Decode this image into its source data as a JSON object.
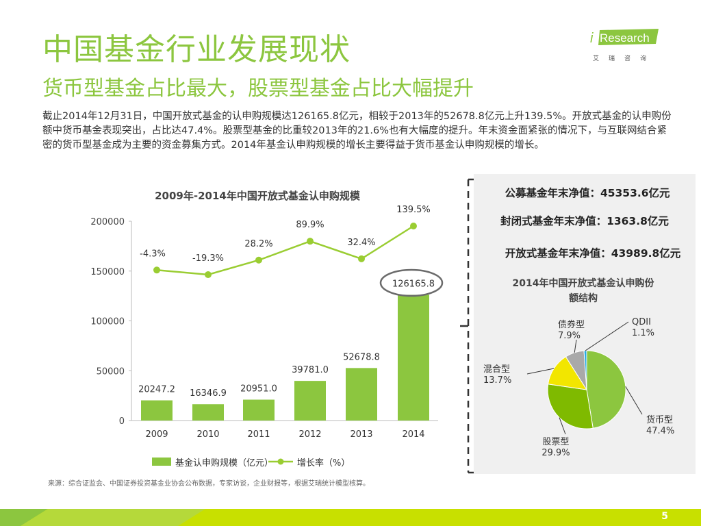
{
  "header": {
    "title": "中国基金行业发展现状",
    "subtitle": "货币型基金占比最大，股票型基金占比大幅提升"
  },
  "logo": {
    "brand_i": "i",
    "brand_text": "Research",
    "subtext": "艾瑞咨询"
  },
  "intro_text": "截止2014年12月31日，中国开放式基金的认申购规模达126165.8亿元，相较于2013年的52678.8亿元上升139.5%。开放式基金的认申购份额中货币基金表现突出，占比达47.4%。股票型基金的比重较2013年的21.6%也有大幅度的提升。年末资金面紧张的情况下，与互联网结合紧密的货币型基金成为主要的资金募集方式。2014年基金认申购规模的增长主要得益于货币基金认申购规模的增长。",
  "side_panel": {
    "lines": [
      "公募基金年末净值：45353.6亿元",
      "封闭式基金年末净值：1363.8亿元",
      "开放式基金年末净值：43989.8亿元"
    ]
  },
  "source": "来源：综合证监会、中国证券投资基金业协会公布数据，专家访谈，企业财报等，根据艾瑞统计模型核算。",
  "page_number": "5",
  "colors": {
    "accent": "#8cc63f",
    "accent_dark": "#9acd32",
    "circle": "#6b6b6b"
  },
  "chart_data": [
    {
      "type": "bar",
      "title": "2009年-2014年中国开放式基金认申购规模",
      "categories": [
        "2009",
        "2010",
        "2011",
        "2012",
        "2013",
        "2014"
      ],
      "series": [
        {
          "name": "基金认申购规模（亿元）",
          "values": [
            20247.2,
            16346.9,
            20951.0,
            39781.0,
            52678.8,
            126165.8
          ],
          "labels": [
            "20247.2",
            "16346.9",
            "20951.0",
            "39781.0",
            "52678.8",
            "126165.8"
          ]
        },
        {
          "name": "增长率（%）",
          "type": "line",
          "values": [
            -4.3,
            -19.3,
            28.2,
            89.9,
            32.4,
            139.5
          ],
          "labels": [
            "-4.3%",
            "-19.3%",
            "28.2%",
            "89.9%",
            "32.4%",
            "139.5%"
          ]
        }
      ],
      "ylim": [
        0,
        200000
      ],
      "yticks": [
        "0",
        "50000",
        "100000",
        "150000",
        "200000"
      ],
      "highlight": "126165.8"
    },
    {
      "type": "pie",
      "title": "2014年中国开放式基金认申购份额结构",
      "slices": [
        {
          "label": "货币型",
          "value": 47.4,
          "pct": "47.4%",
          "color": "#8cc63f"
        },
        {
          "label": "股票型",
          "value": 29.9,
          "pct": "29.9%",
          "color": "#7fba00"
        },
        {
          "label": "混合型",
          "value": 13.7,
          "pct": "13.7%",
          "color": "#f2e600"
        },
        {
          "label": "债券型",
          "value": 7.9,
          "pct": "7.9%",
          "color": "#a9a9a9"
        },
        {
          "label": "QDII",
          "value": 1.1,
          "pct": "1.1%",
          "color": "#29abe2"
        }
      ]
    }
  ]
}
